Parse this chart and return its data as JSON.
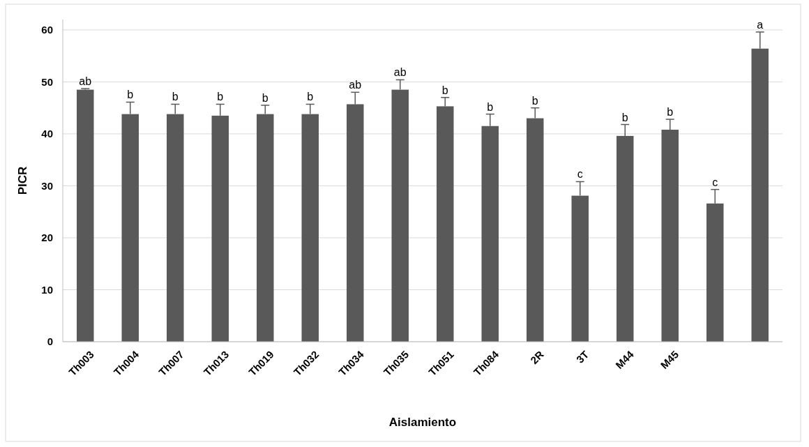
{
  "chart_data": {
    "type": "bar",
    "xlabel": "Aislamiento",
    "ylabel": "PICR",
    "categories": [
      "Th003",
      "Th004",
      "Th007",
      "Th013",
      "Th019",
      "Th032",
      "Th034",
      "Th035",
      "Th051",
      "Th084",
      "2R",
      "3T",
      "M44",
      "M45",
      null,
      null
    ],
    "values": [
      48.5,
      43.8,
      43.8,
      43.5,
      43.8,
      43.8,
      45.7,
      48.5,
      45.3,
      41.5,
      43.0,
      28.1,
      39.6,
      40.8,
      26.6,
      56.4
    ],
    "errors": [
      [
        48.5,
        48.7
      ],
      [
        43.8,
        46.1
      ],
      [
        43.8,
        45.7
      ],
      [
        43.5,
        45.7
      ],
      [
        43.8,
        45.5
      ],
      [
        43.8,
        45.7
      ],
      [
        45.7,
        48.0
      ],
      [
        48.5,
        50.4
      ],
      [
        45.3,
        47.0
      ],
      [
        41.5,
        43.8
      ],
      [
        43.0,
        45.0
      ],
      [
        28.1,
        30.8
      ],
      [
        39.6,
        41.8
      ],
      [
        40.8,
        42.8
      ],
      [
        26.6,
        29.3
      ],
      [
        56.4,
        59.6
      ]
    ],
    "color": "#595959",
    "annotations": [
      "ab",
      "b",
      "b",
      "b",
      "b",
      "b",
      "ab",
      "ab",
      "b",
      "b",
      "b",
      "c",
      "b",
      "b",
      "c",
      "a"
    ],
    "ylim": [
      0,
      62
    ],
    "yticks": [
      0,
      10,
      20,
      30,
      40,
      50,
      60
    ],
    "grid": "y"
  }
}
